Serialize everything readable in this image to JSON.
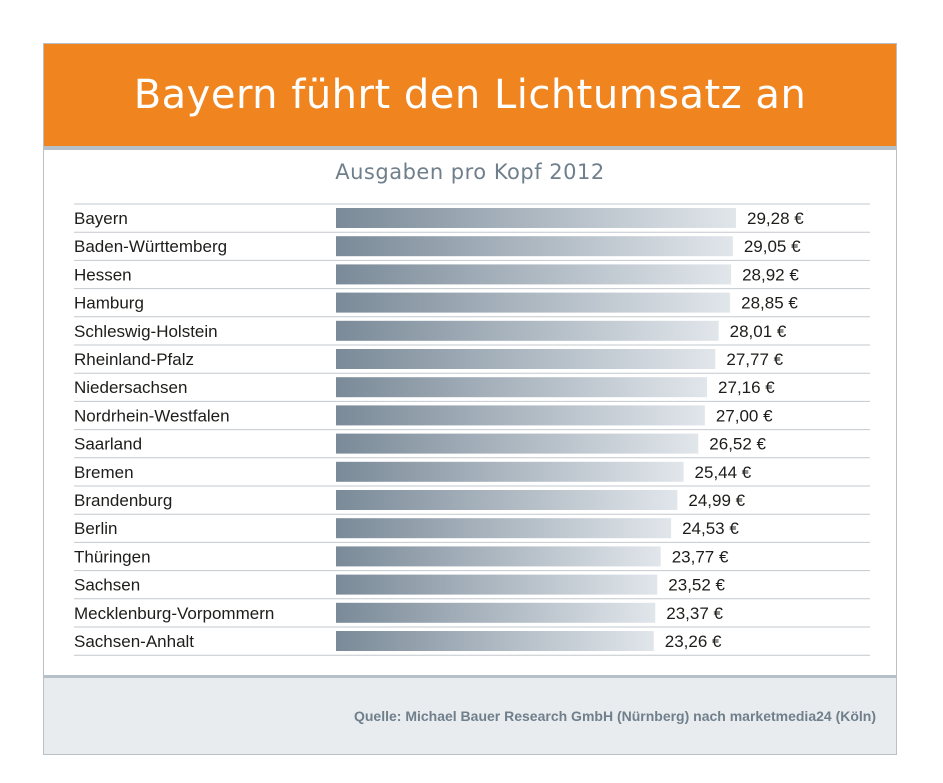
{
  "title": "Bayern führt den Lichtumsatz an",
  "subtitle": "Ausgaben pro Kopf 2012",
  "source": "Quelle: Michael Bauer Research GmbH (Nürnberg) nach marketmedia24 (Köln)",
  "colors": {
    "header": "#f0841f",
    "bar_dark": "#7a8a98",
    "bar_light": "#e1e6eb",
    "footer": "#e9ecef",
    "rule": "#b6c0c9"
  },
  "chart_data": {
    "type": "bar",
    "orientation": "horizontal",
    "title": "Ausgaben pro Kopf 2012",
    "categories": [
      "Bayern",
      "Baden-Württemberg",
      "Hessen",
      "Hamburg",
      "Schleswig-Holstein",
      "Rheinland-Pfalz",
      "Niedersachsen",
      "Nordrhein-Westfalen",
      "Saarland",
      "Bremen",
      "Brandenburg",
      "Berlin",
      "Thüringen",
      "Sachsen",
      "Mecklenburg-Vorpommern",
      "Sachsen-Anhalt"
    ],
    "values": [
      29.28,
      29.05,
      28.92,
      28.85,
      28.01,
      27.77,
      27.16,
      27.0,
      26.52,
      25.44,
      24.99,
      24.53,
      23.77,
      23.52,
      23.37,
      23.26
    ],
    "value_labels": [
      "29,28 €",
      "29,05 €",
      "28,92 €",
      "28,85 €",
      "28,01 €",
      "27,77 €",
      "27,16 €",
      "27,00 €",
      "26,52 €",
      "25,44 €",
      "24,99 €",
      "24,53 €",
      "23,77 €",
      "23,52 €",
      "23,37 €",
      "23,26 €"
    ],
    "xlim": [
      0,
      29.28
    ],
    "grid": false,
    "legend": "none"
  }
}
